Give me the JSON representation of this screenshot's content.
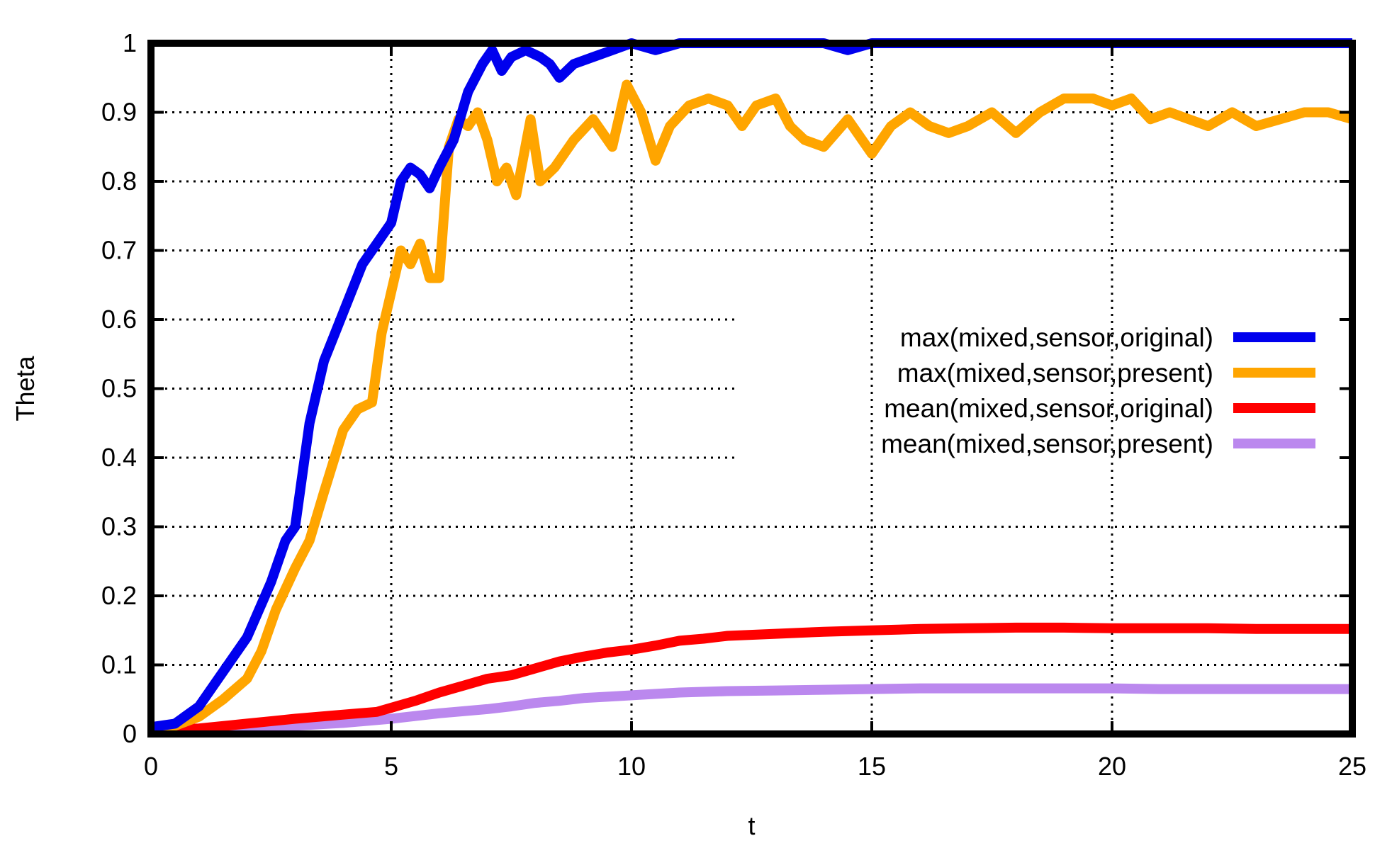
{
  "chart_data": {
    "type": "line",
    "title": "",
    "xlabel": "t",
    "ylabel": "Theta",
    "xlim": [
      0,
      25
    ],
    "ylim": [
      0,
      1
    ],
    "x_ticks": [
      "0",
      "5",
      "10",
      "15",
      "20",
      "25"
    ],
    "y_ticks": [
      "0",
      "0.1",
      "0.2",
      "0.3",
      "0.4",
      "0.5",
      "0.6",
      "0.7",
      "0.8",
      "0.9",
      "1"
    ],
    "grid": true,
    "legend_position": "right",
    "series": [
      {
        "name": "max(mixed,sensor,original)",
        "color": "#0000ee",
        "points": [
          [
            0,
            0.01
          ],
          [
            0.5,
            0.015
          ],
          [
            1,
            0.04
          ],
          [
            1.5,
            0.09
          ],
          [
            2,
            0.14
          ],
          [
            2.5,
            0.22
          ],
          [
            2.8,
            0.28
          ],
          [
            3,
            0.3
          ],
          [
            3.3,
            0.45
          ],
          [
            3.6,
            0.54
          ],
          [
            4,
            0.61
          ],
          [
            4.4,
            0.68
          ],
          [
            4.7,
            0.71
          ],
          [
            5,
            0.74
          ],
          [
            5.2,
            0.8
          ],
          [
            5.4,
            0.82
          ],
          [
            5.6,
            0.81
          ],
          [
            5.8,
            0.79
          ],
          [
            6,
            0.82
          ],
          [
            6.3,
            0.86
          ],
          [
            6.6,
            0.93
          ],
          [
            6.9,
            0.97
          ],
          [
            7.1,
            0.99
          ],
          [
            7.3,
            0.96
          ],
          [
            7.5,
            0.98
          ],
          [
            7.8,
            0.99
          ],
          [
            8.1,
            0.98
          ],
          [
            8.3,
            0.97
          ],
          [
            8.5,
            0.95
          ],
          [
            8.8,
            0.97
          ],
          [
            9.2,
            0.98
          ],
          [
            9.6,
            0.99
          ],
          [
            10,
            1.0
          ],
          [
            10.5,
            0.99
          ],
          [
            11,
            1.0
          ],
          [
            12,
            1.0
          ],
          [
            12.5,
            1.0
          ],
          [
            13,
            1.0
          ],
          [
            14,
            1.0
          ],
          [
            14.5,
            0.99
          ],
          [
            15,
            1.0
          ],
          [
            16,
            1.0
          ],
          [
            17,
            1.0
          ],
          [
            18,
            1.0
          ],
          [
            19,
            1.0
          ],
          [
            20,
            1.0
          ],
          [
            21,
            1.0
          ],
          [
            22,
            1.0
          ],
          [
            23,
            1.0
          ],
          [
            24,
            1.0
          ],
          [
            25,
            1.0
          ]
        ]
      },
      {
        "name": "max(mixed,sensor,present)",
        "color": "#ffa500",
        "points": [
          [
            0,
            0.01
          ],
          [
            0.5,
            0.012
          ],
          [
            1,
            0.025
          ],
          [
            1.5,
            0.05
          ],
          [
            2,
            0.08
          ],
          [
            2.3,
            0.12
          ],
          [
            2.6,
            0.18
          ],
          [
            3,
            0.24
          ],
          [
            3.3,
            0.28
          ],
          [
            3.6,
            0.35
          ],
          [
            4,
            0.44
          ],
          [
            4.3,
            0.47
          ],
          [
            4.6,
            0.48
          ],
          [
            4.8,
            0.58
          ],
          [
            5,
            0.64
          ],
          [
            5.2,
            0.7
          ],
          [
            5.4,
            0.68
          ],
          [
            5.6,
            0.71
          ],
          [
            5.8,
            0.66
          ],
          [
            6,
            0.66
          ],
          [
            6.2,
            0.85
          ],
          [
            6.4,
            0.89
          ],
          [
            6.6,
            0.88
          ],
          [
            6.8,
            0.9
          ],
          [
            7,
            0.86
          ],
          [
            7.2,
            0.8
          ],
          [
            7.4,
            0.82
          ],
          [
            7.6,
            0.78
          ],
          [
            7.9,
            0.89
          ],
          [
            8.1,
            0.8
          ],
          [
            8.4,
            0.82
          ],
          [
            8.8,
            0.86
          ],
          [
            9.2,
            0.89
          ],
          [
            9.6,
            0.85
          ],
          [
            9.9,
            0.94
          ],
          [
            10.2,
            0.9
          ],
          [
            10.5,
            0.83
          ],
          [
            10.8,
            0.88
          ],
          [
            11.2,
            0.91
          ],
          [
            11.6,
            0.92
          ],
          [
            12,
            0.91
          ],
          [
            12.3,
            0.88
          ],
          [
            12.6,
            0.91
          ],
          [
            13,
            0.92
          ],
          [
            13.3,
            0.88
          ],
          [
            13.6,
            0.86
          ],
          [
            14,
            0.85
          ],
          [
            14.5,
            0.89
          ],
          [
            15,
            0.84
          ],
          [
            15.4,
            0.88
          ],
          [
            15.8,
            0.9
          ],
          [
            16.2,
            0.88
          ],
          [
            16.6,
            0.87
          ],
          [
            17,
            0.88
          ],
          [
            17.5,
            0.9
          ],
          [
            18,
            0.87
          ],
          [
            18.5,
            0.9
          ],
          [
            19,
            0.92
          ],
          [
            19.6,
            0.92
          ],
          [
            20,
            0.91
          ],
          [
            20.4,
            0.92
          ],
          [
            20.8,
            0.89
          ],
          [
            21.2,
            0.9
          ],
          [
            21.6,
            0.89
          ],
          [
            22,
            0.88
          ],
          [
            22.5,
            0.9
          ],
          [
            23,
            0.88
          ],
          [
            23.5,
            0.89
          ],
          [
            24,
            0.9
          ],
          [
            24.5,
            0.9
          ],
          [
            25,
            0.89
          ]
        ]
      },
      {
        "name": "mean(mixed,sensor,original)",
        "color": "#ff0000",
        "points": [
          [
            0,
            0.005
          ],
          [
            1,
            0.008
          ],
          [
            2,
            0.015
          ],
          [
            3,
            0.022
          ],
          [
            4,
            0.028
          ],
          [
            4.7,
            0.032
          ],
          [
            5,
            0.038
          ],
          [
            5.5,
            0.048
          ],
          [
            6,
            0.06
          ],
          [
            6.5,
            0.07
          ],
          [
            7,
            0.08
          ],
          [
            7.5,
            0.085
          ],
          [
            8,
            0.095
          ],
          [
            8.5,
            0.105
          ],
          [
            9,
            0.112
          ],
          [
            9.5,
            0.118
          ],
          [
            10,
            0.122
          ],
          [
            10.5,
            0.128
          ],
          [
            11,
            0.135
          ],
          [
            11.5,
            0.138
          ],
          [
            12,
            0.142
          ],
          [
            13,
            0.145
          ],
          [
            14,
            0.148
          ],
          [
            15,
            0.15
          ],
          [
            16,
            0.152
          ],
          [
            17,
            0.153
          ],
          [
            18,
            0.154
          ],
          [
            19,
            0.154
          ],
          [
            20,
            0.153
          ],
          [
            21,
            0.153
          ],
          [
            22,
            0.153
          ],
          [
            23,
            0.152
          ],
          [
            24,
            0.152
          ],
          [
            25,
            0.152
          ]
        ]
      },
      {
        "name": "mean(mixed,sensor,present)",
        "color": "#bb88ee",
        "points": [
          [
            0,
            0.005
          ],
          [
            1,
            0.006
          ],
          [
            2,
            0.009
          ],
          [
            3,
            0.012
          ],
          [
            4,
            0.016
          ],
          [
            5,
            0.022
          ],
          [
            6,
            0.03
          ],
          [
            7,
            0.036
          ],
          [
            7.5,
            0.04
          ],
          [
            8,
            0.045
          ],
          [
            8.5,
            0.048
          ],
          [
            9,
            0.052
          ],
          [
            9.5,
            0.054
          ],
          [
            10,
            0.056
          ],
          [
            11,
            0.06
          ],
          [
            12,
            0.062
          ],
          [
            13,
            0.063
          ],
          [
            14,
            0.064
          ],
          [
            15,
            0.065
          ],
          [
            16,
            0.066
          ],
          [
            17,
            0.066
          ],
          [
            18,
            0.066
          ],
          [
            19,
            0.066
          ],
          [
            20,
            0.066
          ],
          [
            21,
            0.065
          ],
          [
            22,
            0.065
          ],
          [
            23,
            0.065
          ],
          [
            24,
            0.065
          ],
          [
            25,
            0.065
          ]
        ]
      }
    ]
  }
}
